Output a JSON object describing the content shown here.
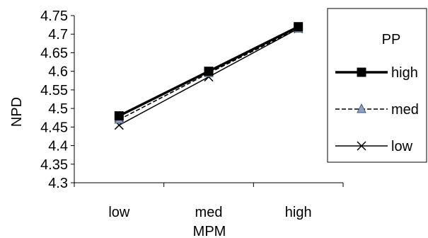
{
  "chart_data": {
    "type": "line",
    "title": "",
    "xlabel": "MPM",
    "ylabel": "NPD",
    "categories": [
      "low",
      "med",
      "high"
    ],
    "ylim": [
      4.3,
      4.75
    ],
    "yticks": [
      "4.3",
      "4.35",
      "4.4",
      "4.45",
      "4.5",
      "4.55",
      "4.6",
      "4.65",
      "4.7",
      "4.75"
    ],
    "grid": false,
    "legend": {
      "title": "PP",
      "placement": "right"
    },
    "series": [
      {
        "name": "high",
        "values": [
          4.48,
          4.6,
          4.72
        ],
        "marker": "square",
        "style": "thick-solid",
        "color": "#000000"
      },
      {
        "name": "med",
        "values": [
          4.47,
          4.595,
          4.715
        ],
        "marker": "triangle",
        "style": "dashed",
        "color": "#000000",
        "marker_color": "#8ea3c4"
      },
      {
        "name": "low",
        "values": [
          4.455,
          4.585,
          4.715
        ],
        "marker": "x",
        "style": "thin-solid",
        "color": "#000000"
      }
    ]
  }
}
